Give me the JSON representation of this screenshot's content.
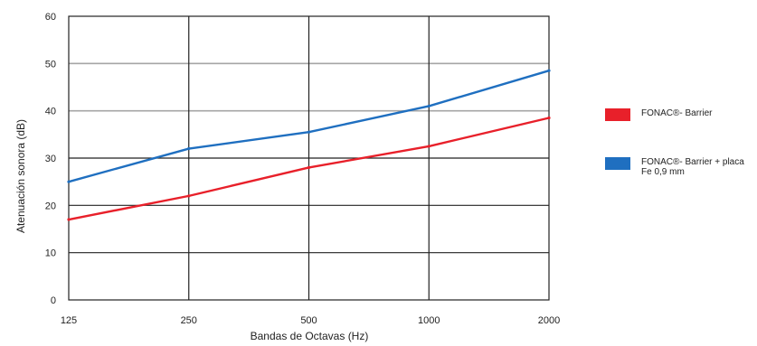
{
  "chart_data": {
    "type": "line",
    "title": "",
    "xlabel": "Bandas de Octavas (Hz)",
    "ylabel": "Atenuación sonora (dB)",
    "categories": [
      "125",
      "250",
      "500",
      "1000",
      "2000"
    ],
    "ylim": [
      0,
      60
    ],
    "yticks": [
      "0",
      "10",
      "20",
      "30",
      "40",
      "50",
      "60"
    ],
    "grid": true,
    "legend_position": "right",
    "series": [
      {
        "name": "FONAC®- Barrier",
        "color": "#e8202a",
        "values": [
          17,
          22,
          28,
          32.5,
          38.5
        ]
      },
      {
        "name": "FONAC®- Barrier + placa Fe 0,9 mm",
        "color": "#1f6fc0",
        "values": [
          25,
          32,
          35.5,
          41,
          48.5
        ]
      }
    ]
  }
}
